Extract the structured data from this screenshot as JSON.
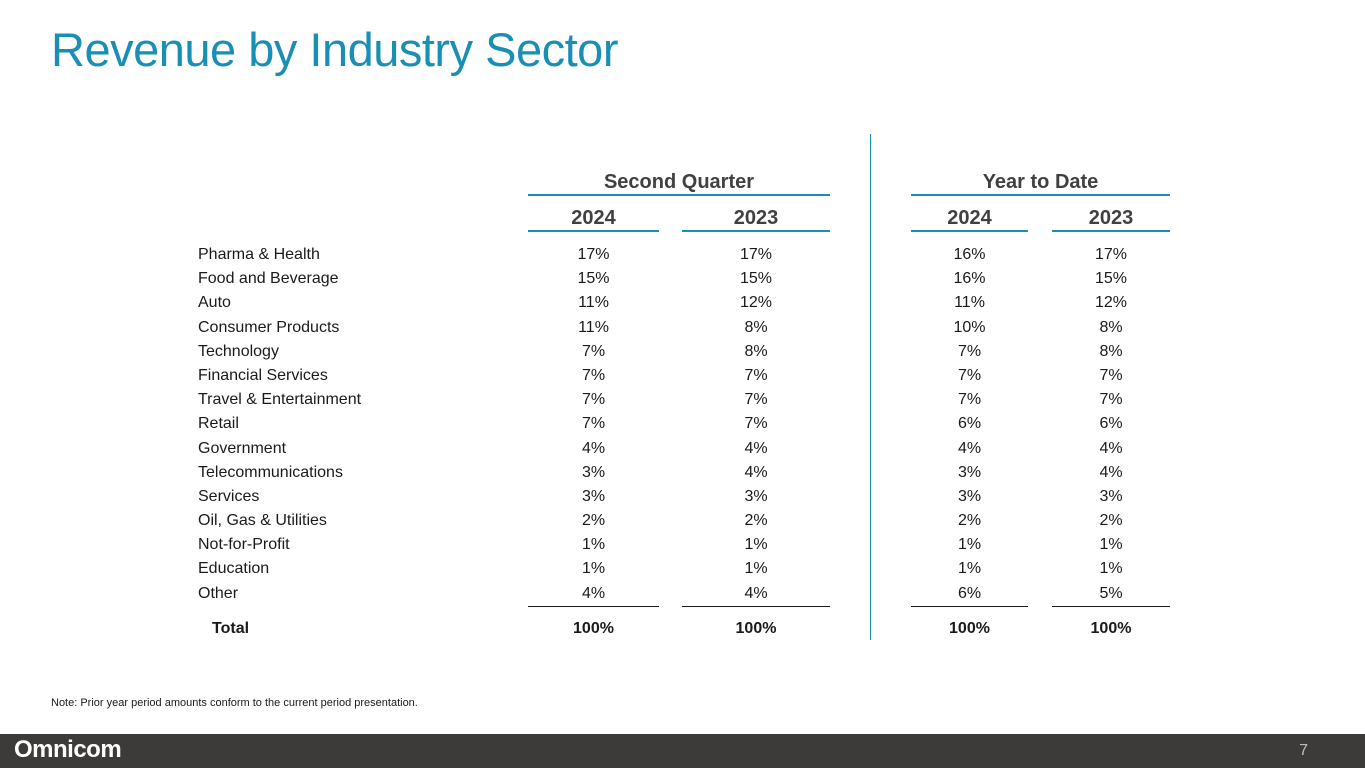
{
  "title": "Revenue by Industry Sector",
  "groups": {
    "second_quarter": "Second Quarter",
    "year_to_date": "Year to Date"
  },
  "years": {
    "q_2024": "2024",
    "q_2023": "2023",
    "ytd_2024": "2024",
    "ytd_2023": "2023"
  },
  "rows": [
    {
      "label": "Pharma & Health",
      "q2024": "17%",
      "q2023": "17%",
      "ytd2024": "16%",
      "ytd2023": "17%"
    },
    {
      "label": "Food and Beverage",
      "q2024": "15%",
      "q2023": "15%",
      "ytd2024": "16%",
      "ytd2023": "15%"
    },
    {
      "label": "Auto",
      "q2024": "11%",
      "q2023": "12%",
      "ytd2024": "11%",
      "ytd2023": "12%"
    },
    {
      "label": "Consumer Products",
      "q2024": "11%",
      "q2023": "8%",
      "ytd2024": "10%",
      "ytd2023": "8%"
    },
    {
      "label": "Technology",
      "q2024": "7%",
      "q2023": "8%",
      "ytd2024": "7%",
      "ytd2023": "8%"
    },
    {
      "label": "Financial Services",
      "q2024": "7%",
      "q2023": "7%",
      "ytd2024": "7%",
      "ytd2023": "7%"
    },
    {
      "label": "Travel & Entertainment",
      "q2024": "7%",
      "q2023": "7%",
      "ytd2024": "7%",
      "ytd2023": "7%"
    },
    {
      "label": "Retail",
      "q2024": "7%",
      "q2023": "7%",
      "ytd2024": "6%",
      "ytd2023": "6%"
    },
    {
      "label": "Government",
      "q2024": "4%",
      "q2023": "4%",
      "ytd2024": "4%",
      "ytd2023": "4%"
    },
    {
      "label": "Telecommunications",
      "q2024": "3%",
      "q2023": "4%",
      "ytd2024": "3%",
      "ytd2023": "4%"
    },
    {
      "label": "Services",
      "q2024": "3%",
      "q2023": "3%",
      "ytd2024": "3%",
      "ytd2023": "3%"
    },
    {
      "label": "Oil, Gas & Utilities",
      "q2024": "2%",
      "q2023": "2%",
      "ytd2024": "2%",
      "ytd2023": "2%"
    },
    {
      "label": "Not-for-Profit",
      "q2024": "1%",
      "q2023": "1%",
      "ytd2024": "1%",
      "ytd2023": "1%"
    },
    {
      "label": "Education",
      "q2024": "1%",
      "q2023": "1%",
      "ytd2024": "1%",
      "ytd2023": "1%"
    },
    {
      "label": "Other",
      "q2024": "4%",
      "q2023": "4%",
      "ytd2024": "6%",
      "ytd2023": "5%"
    }
  ],
  "total": {
    "label": "Total",
    "q2024": "100%",
    "q2023": "100%",
    "ytd2024": "100%",
    "ytd2023": "100%"
  },
  "note": "Note:  Prior year period amounts conform to the current period presentation.",
  "footer": {
    "logo": "Omnicom",
    "page_number": "7"
  },
  "colors": {
    "accent": "#1a8fb5",
    "footer_bg": "#3c3b39",
    "text": "#1a1a1a"
  }
}
